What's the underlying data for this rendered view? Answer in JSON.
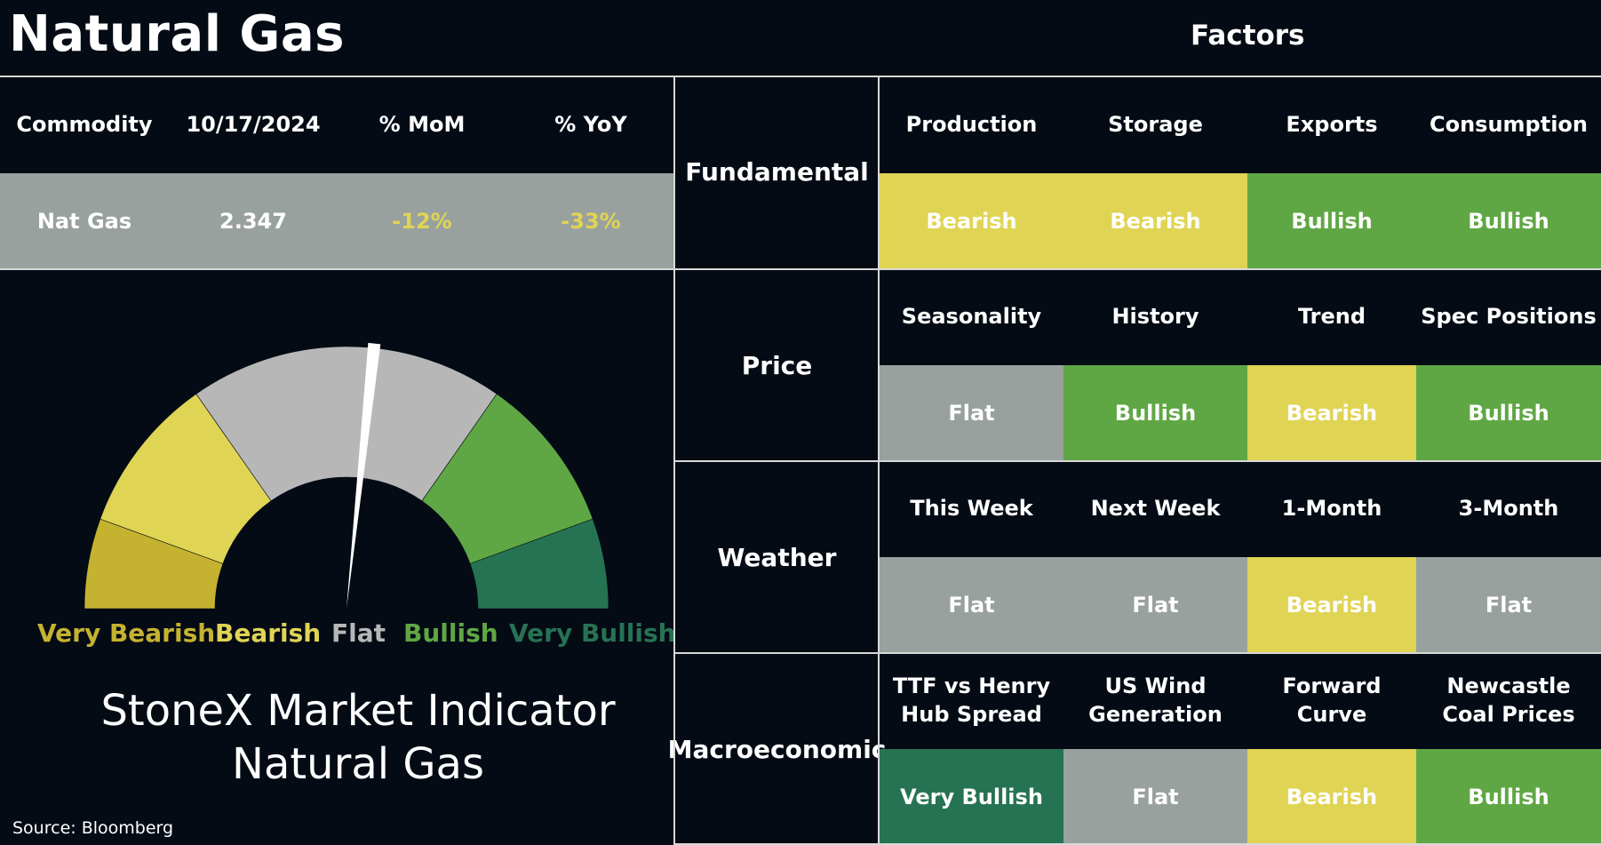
{
  "header": {
    "title": "Natural Gas",
    "factors_heading": "Factors"
  },
  "commodity_table": {
    "headers": [
      "Commodity",
      "10/17/2024",
      "% MoM",
      "% YoY"
    ],
    "row": {
      "name": "Nat Gas",
      "price": "2.347",
      "mom": "-12%",
      "yoy": "-33%"
    }
  },
  "gauge": {
    "labels": [
      "Very Bearish",
      "Bearish",
      "Flat",
      "Bullish",
      "Very Bullish"
    ],
    "reading": "Flat"
  },
  "indicator": {
    "line1": "StoneX Market Indicator",
    "line2": "Natural Gas"
  },
  "source": "Source: Bloomberg",
  "factors": [
    {
      "category": "Fundamental",
      "items": [
        {
          "name": "Production",
          "status": "Bearish"
        },
        {
          "name": "Storage",
          "status": "Bearish"
        },
        {
          "name": "Exports",
          "status": "Bullish"
        },
        {
          "name": "Consumption",
          "status": "Bullish"
        }
      ]
    },
    {
      "category": "Price",
      "items": [
        {
          "name": "Seasonality",
          "status": "Flat"
        },
        {
          "name": "History",
          "status": "Bullish"
        },
        {
          "name": "Trend",
          "status": "Bearish"
        },
        {
          "name": "Spec Positions",
          "status": "Bullish"
        }
      ]
    },
    {
      "category": "Weather",
      "items": [
        {
          "name": "This Week",
          "status": "Flat"
        },
        {
          "name": "Next Week",
          "status": "Flat"
        },
        {
          "name": "1-Month",
          "status": "Bearish"
        },
        {
          "name": "3-Month",
          "status": "Flat"
        }
      ]
    },
    {
      "category": "Macroeconomic",
      "items": [
        {
          "name": "TTF vs Henry Hub Spread",
          "status": "Very Bullish"
        },
        {
          "name": "US Wind Generation",
          "status": "Flat"
        },
        {
          "name": "Forward Curve",
          "status": "Bearish"
        },
        {
          "name": "Newcastle Coal Prices",
          "status": "Bullish"
        }
      ]
    }
  ],
  "colors": {
    "background": "#040b15",
    "very_bearish": "#c5b230",
    "bearish": "#e0d454",
    "flat": "#99a19f",
    "bullish": "#5fa744",
    "very_bullish": "#267354",
    "gauge_flat": "#b7b7b7",
    "negative_text": "#e0d454"
  }
}
